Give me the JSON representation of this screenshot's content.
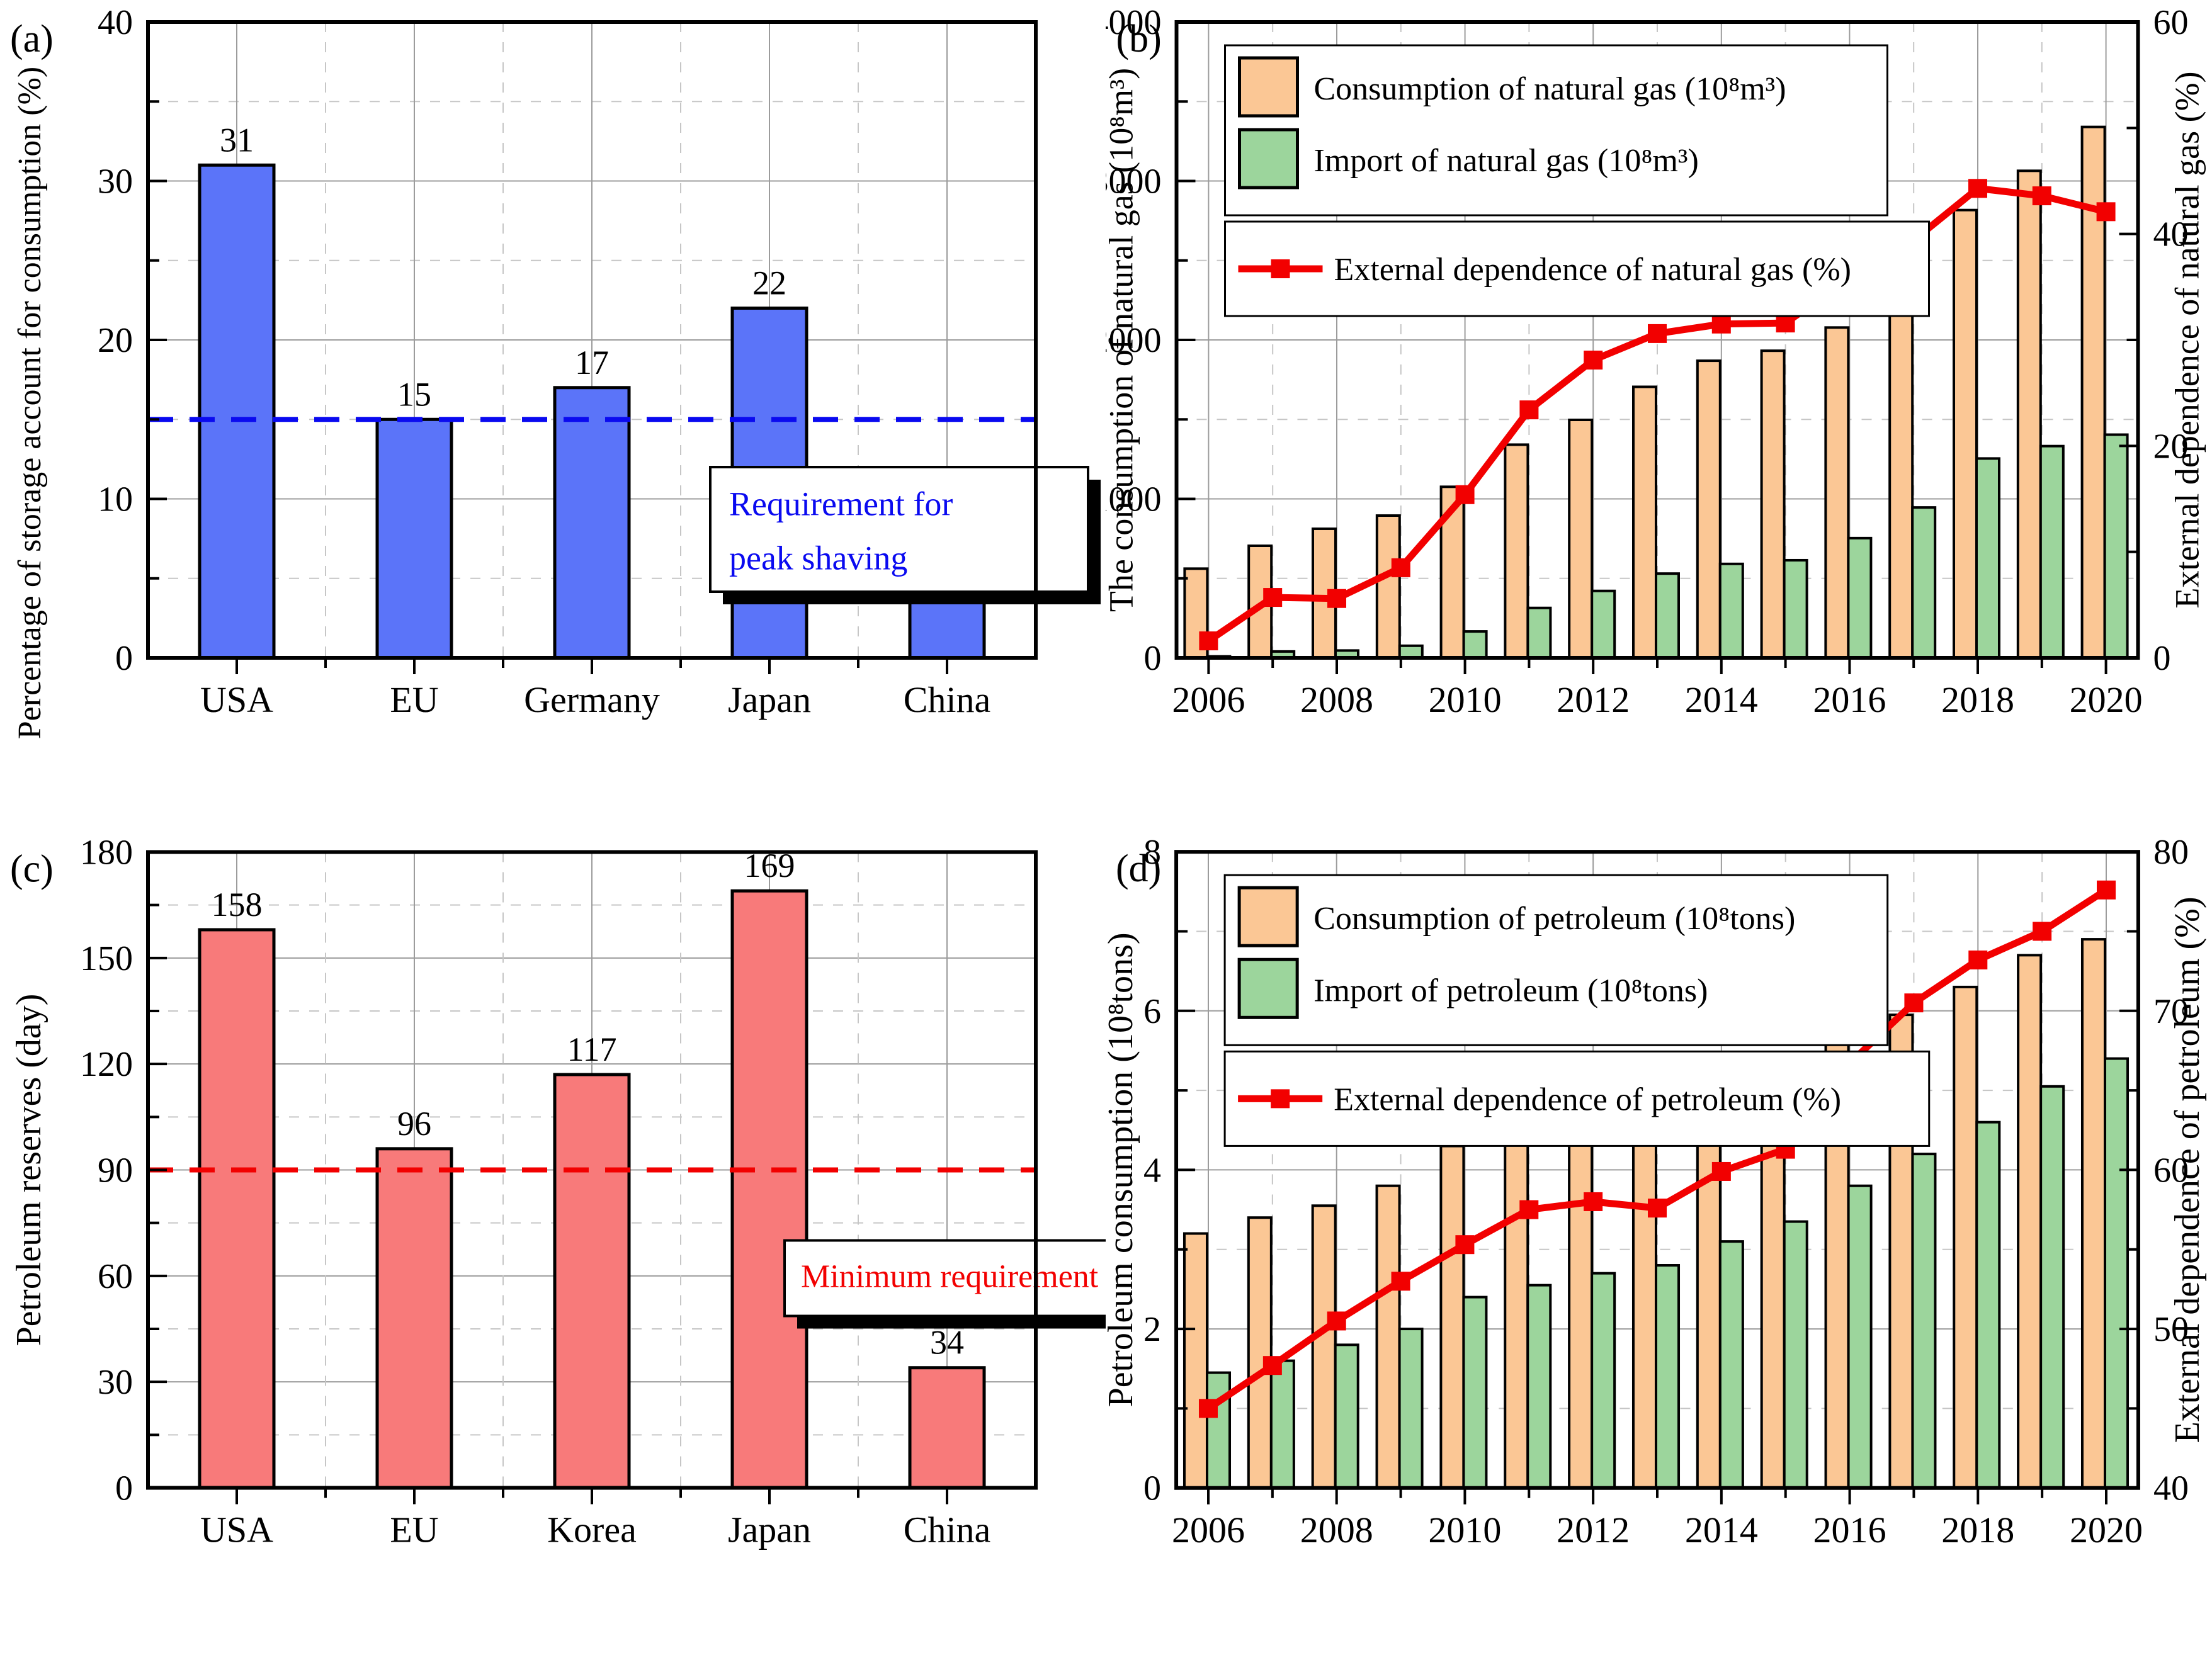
{
  "figure": {
    "background": "#ffffff",
    "grid_major_color": "#9c9c9c",
    "grid_minor_color": "#c6c6c6"
  },
  "chart_data": [
    {
      "id": "a",
      "panel_label": "(a)",
      "type": "bar",
      "ylabel": "Percentage of storage account for consumption (%)",
      "ylim": [
        0,
        40
      ],
      "ymajor": 10,
      "yminor": 5,
      "categories": [
        "USA",
        "EU",
        "Germany",
        "Japan",
        "China"
      ],
      "values": [
        31,
        15,
        17,
        22,
        4
      ],
      "bar_color": "#5b74f9",
      "ref_line": {
        "value": 15,
        "color": "#0a0af0",
        "label_lines": [
          "Requirement for",
          "peak shaving"
        ]
      }
    },
    {
      "id": "b",
      "panel_label": "(b)",
      "type": "combo",
      "ylabel": "The consumption of natural gas (10⁸m³)",
      "y2label": "External dependence of natural gas (%)",
      "ylim": [
        0,
        4000
      ],
      "ymajor": 1000,
      "yminor": 500,
      "y2lim": [
        0,
        60
      ],
      "y2major": 20,
      "y2minor": 10,
      "x": [
        2006,
        2007,
        2008,
        2009,
        2010,
        2011,
        2012,
        2013,
        2014,
        2015,
        2016,
        2017,
        2018,
        2019,
        2020
      ],
      "series": [
        {
          "name": "Consumption of natural gas (10⁸m³)",
          "type": "bar",
          "color": "#fbc795",
          "values": [
            561,
            705,
            812,
            895,
            1076,
            1341,
            1497,
            1705,
            1869,
            1932,
            2078,
            2394,
            2817,
            3064,
            3340
          ]
        },
        {
          "name": "Import of natural gas (10⁸m³)",
          "type": "bar",
          "color": "#9cd59c",
          "values": [
            9,
            40,
            46,
            76,
            166,
            314,
            421,
            530,
            591,
            614,
            753,
            946,
            1254,
            1332,
            1404
          ]
        },
        {
          "name": "External dependence of natural gas (%)",
          "type": "line",
          "axis": "right",
          "color": "#f20000",
          "values": [
            1.6,
            5.7,
            5.6,
            8.5,
            15.4,
            23.4,
            28.1,
            30.6,
            31.5,
            31.6,
            35.8,
            39.4,
            44.3,
            43.6,
            42.1
          ]
        }
      ]
    },
    {
      "id": "c",
      "panel_label": "(c)",
      "type": "bar",
      "ylabel": "Petroleum reserves (day)",
      "ylim": [
        0,
        180
      ],
      "ymajor": 30,
      "yminor": 15,
      "categories": [
        "USA",
        "EU",
        "Korea",
        "Japan",
        "China"
      ],
      "values": [
        158,
        96,
        117,
        169,
        34
      ],
      "bar_color": "#f87a7a",
      "ref_line": {
        "value": 90,
        "color": "#f20000",
        "label_lines": [
          "Minimum requirement"
        ]
      }
    },
    {
      "id": "d",
      "panel_label": "(d)",
      "type": "combo",
      "ylabel": "Petroleum consumption (10⁸tons)",
      "y2label": "External dependence of petroleum (%)",
      "ylim": [
        0,
        8
      ],
      "ymajor": 2,
      "yminor": 1,
      "y2lim": [
        40,
        80
      ],
      "y2major": 10,
      "y2minor": 5,
      "x": [
        2006,
        2007,
        2008,
        2009,
        2010,
        2011,
        2012,
        2013,
        2014,
        2015,
        2016,
        2017,
        2018,
        2019,
        2020
      ],
      "series": [
        {
          "name": "Consumption of petroleum (10⁸tons)",
          "type": "bar",
          "color": "#fbc795",
          "values": [
            3.2,
            3.4,
            3.55,
            3.8,
            4.3,
            4.4,
            4.65,
            4.9,
            5.2,
            5.45,
            5.7,
            5.95,
            6.3,
            6.7,
            6.9
          ]
        },
        {
          "name": "Import of petroleum (10⁸tons)",
          "type": "bar",
          "color": "#9cd59c",
          "values": [
            1.45,
            1.6,
            1.8,
            2.0,
            2.4,
            2.55,
            2.7,
            2.8,
            3.1,
            3.35,
            3.8,
            4.2,
            4.6,
            5.05,
            5.4
          ]
        },
        {
          "name": "External dependence of petroleum (%)",
          "type": "line",
          "axis": "right",
          "color": "#f20000",
          "values": [
            45,
            47.7,
            50.5,
            53,
            55.3,
            57.5,
            58,
            57.6,
            59.9,
            61.3,
            66.7,
            70.5,
            73.2,
            75,
            77.6
          ]
        }
      ]
    }
  ]
}
